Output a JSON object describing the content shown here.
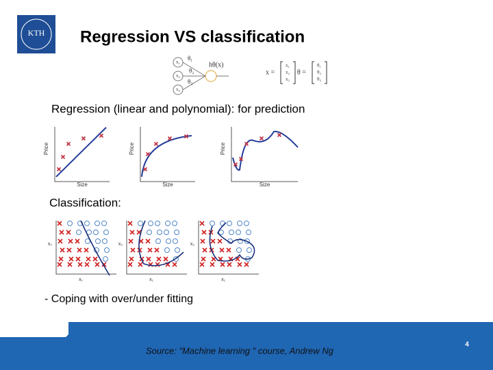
{
  "header": {
    "logo": "KTH",
    "title": "Regression VS classification"
  },
  "formula": {
    "inputs": [
      "x₁",
      "x₂",
      "x₃"
    ],
    "weights": [
      "θ₁",
      "θ₂",
      "θ₃"
    ],
    "hypothesis": "hθ(x)",
    "x_label": "x =",
    "theta_label": "θ ="
  },
  "regression": {
    "heading": "Regression (linear and polynomial): for prediction",
    "plots": [
      {
        "y_label": "Price",
        "x_label": "Size"
      },
      {
        "y_label": "Price",
        "x_label": "Size"
      },
      {
        "y_label": "Price",
        "x_label": "Size"
      }
    ]
  },
  "classification": {
    "heading": "Classification:",
    "plots": [
      {
        "y_label": "x₂",
        "x_label": "x₁"
      },
      {
        "y_label": "x₂",
        "x_label": "x₁"
      },
      {
        "y_label": "x₂",
        "x_label": "x₁"
      }
    ]
  },
  "note": "- Coping with over/under fitting",
  "footer": {
    "source": "Source: \"Machine learning \" course, Andrew Ng",
    "page": "4"
  }
}
